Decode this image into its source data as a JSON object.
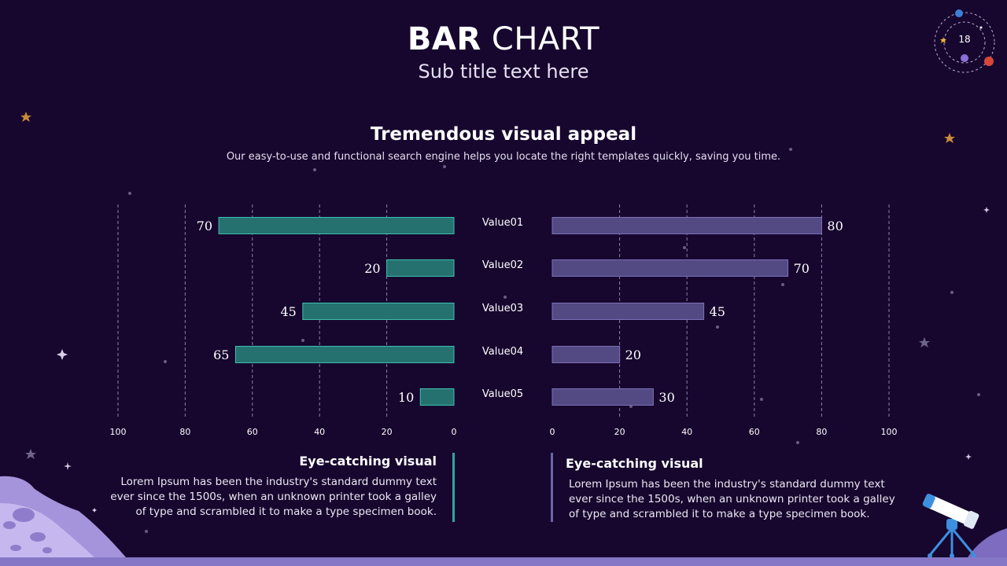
{
  "header": {
    "title_bold": "BAR",
    "title_light": "CHART",
    "subtitle": "Sub title text here"
  },
  "section": {
    "heading": "Tremendous visual appeal",
    "description": "Our easy-to-use and functional search engine helps you locate the right templates quickly, saving you time."
  },
  "page_number": "18",
  "cards": {
    "left": {
      "title": "Eye-catching visual",
      "body": "Lorem Ipsum has been the industry's standard dummy text ever since the 1500s, when an unknown printer took a galley of type and scrambled it to make a type specimen book."
    },
    "right": {
      "title": "Eye-catching visual",
      "body": "Lorem Ipsum has been the industry's standard dummy text ever since the 1500s, when an unknown printer took a galley of type and scrambled it to make a type specimen book."
    }
  },
  "colors": {
    "background": "#17062e",
    "left_bar": "#257170",
    "left_bar_border": "#3cc0b0",
    "right_bar": "#534983",
    "right_bar_border": "#7b70b8",
    "grid": "#8a80a6"
  },
  "icons": [
    "planet-orbit-icon",
    "telescope-icon",
    "moon-surface-icon",
    "star-icon"
  ],
  "chart_data": {
    "type": "bar",
    "orientation": "horizontal-butterfly",
    "categories": [
      "Value01",
      "Value02",
      "Value03",
      "Value04",
      "Value05"
    ],
    "series": [
      {
        "values": [
          70,
          20,
          45,
          65,
          10
        ],
        "direction": "left"
      },
      {
        "values": [
          80,
          70,
          45,
          20,
          30
        ],
        "direction": "right"
      }
    ],
    "xlim": [
      0,
      100
    ],
    "ticks": [
      0,
      20,
      40,
      60,
      80,
      100
    ],
    "grid": true
  }
}
